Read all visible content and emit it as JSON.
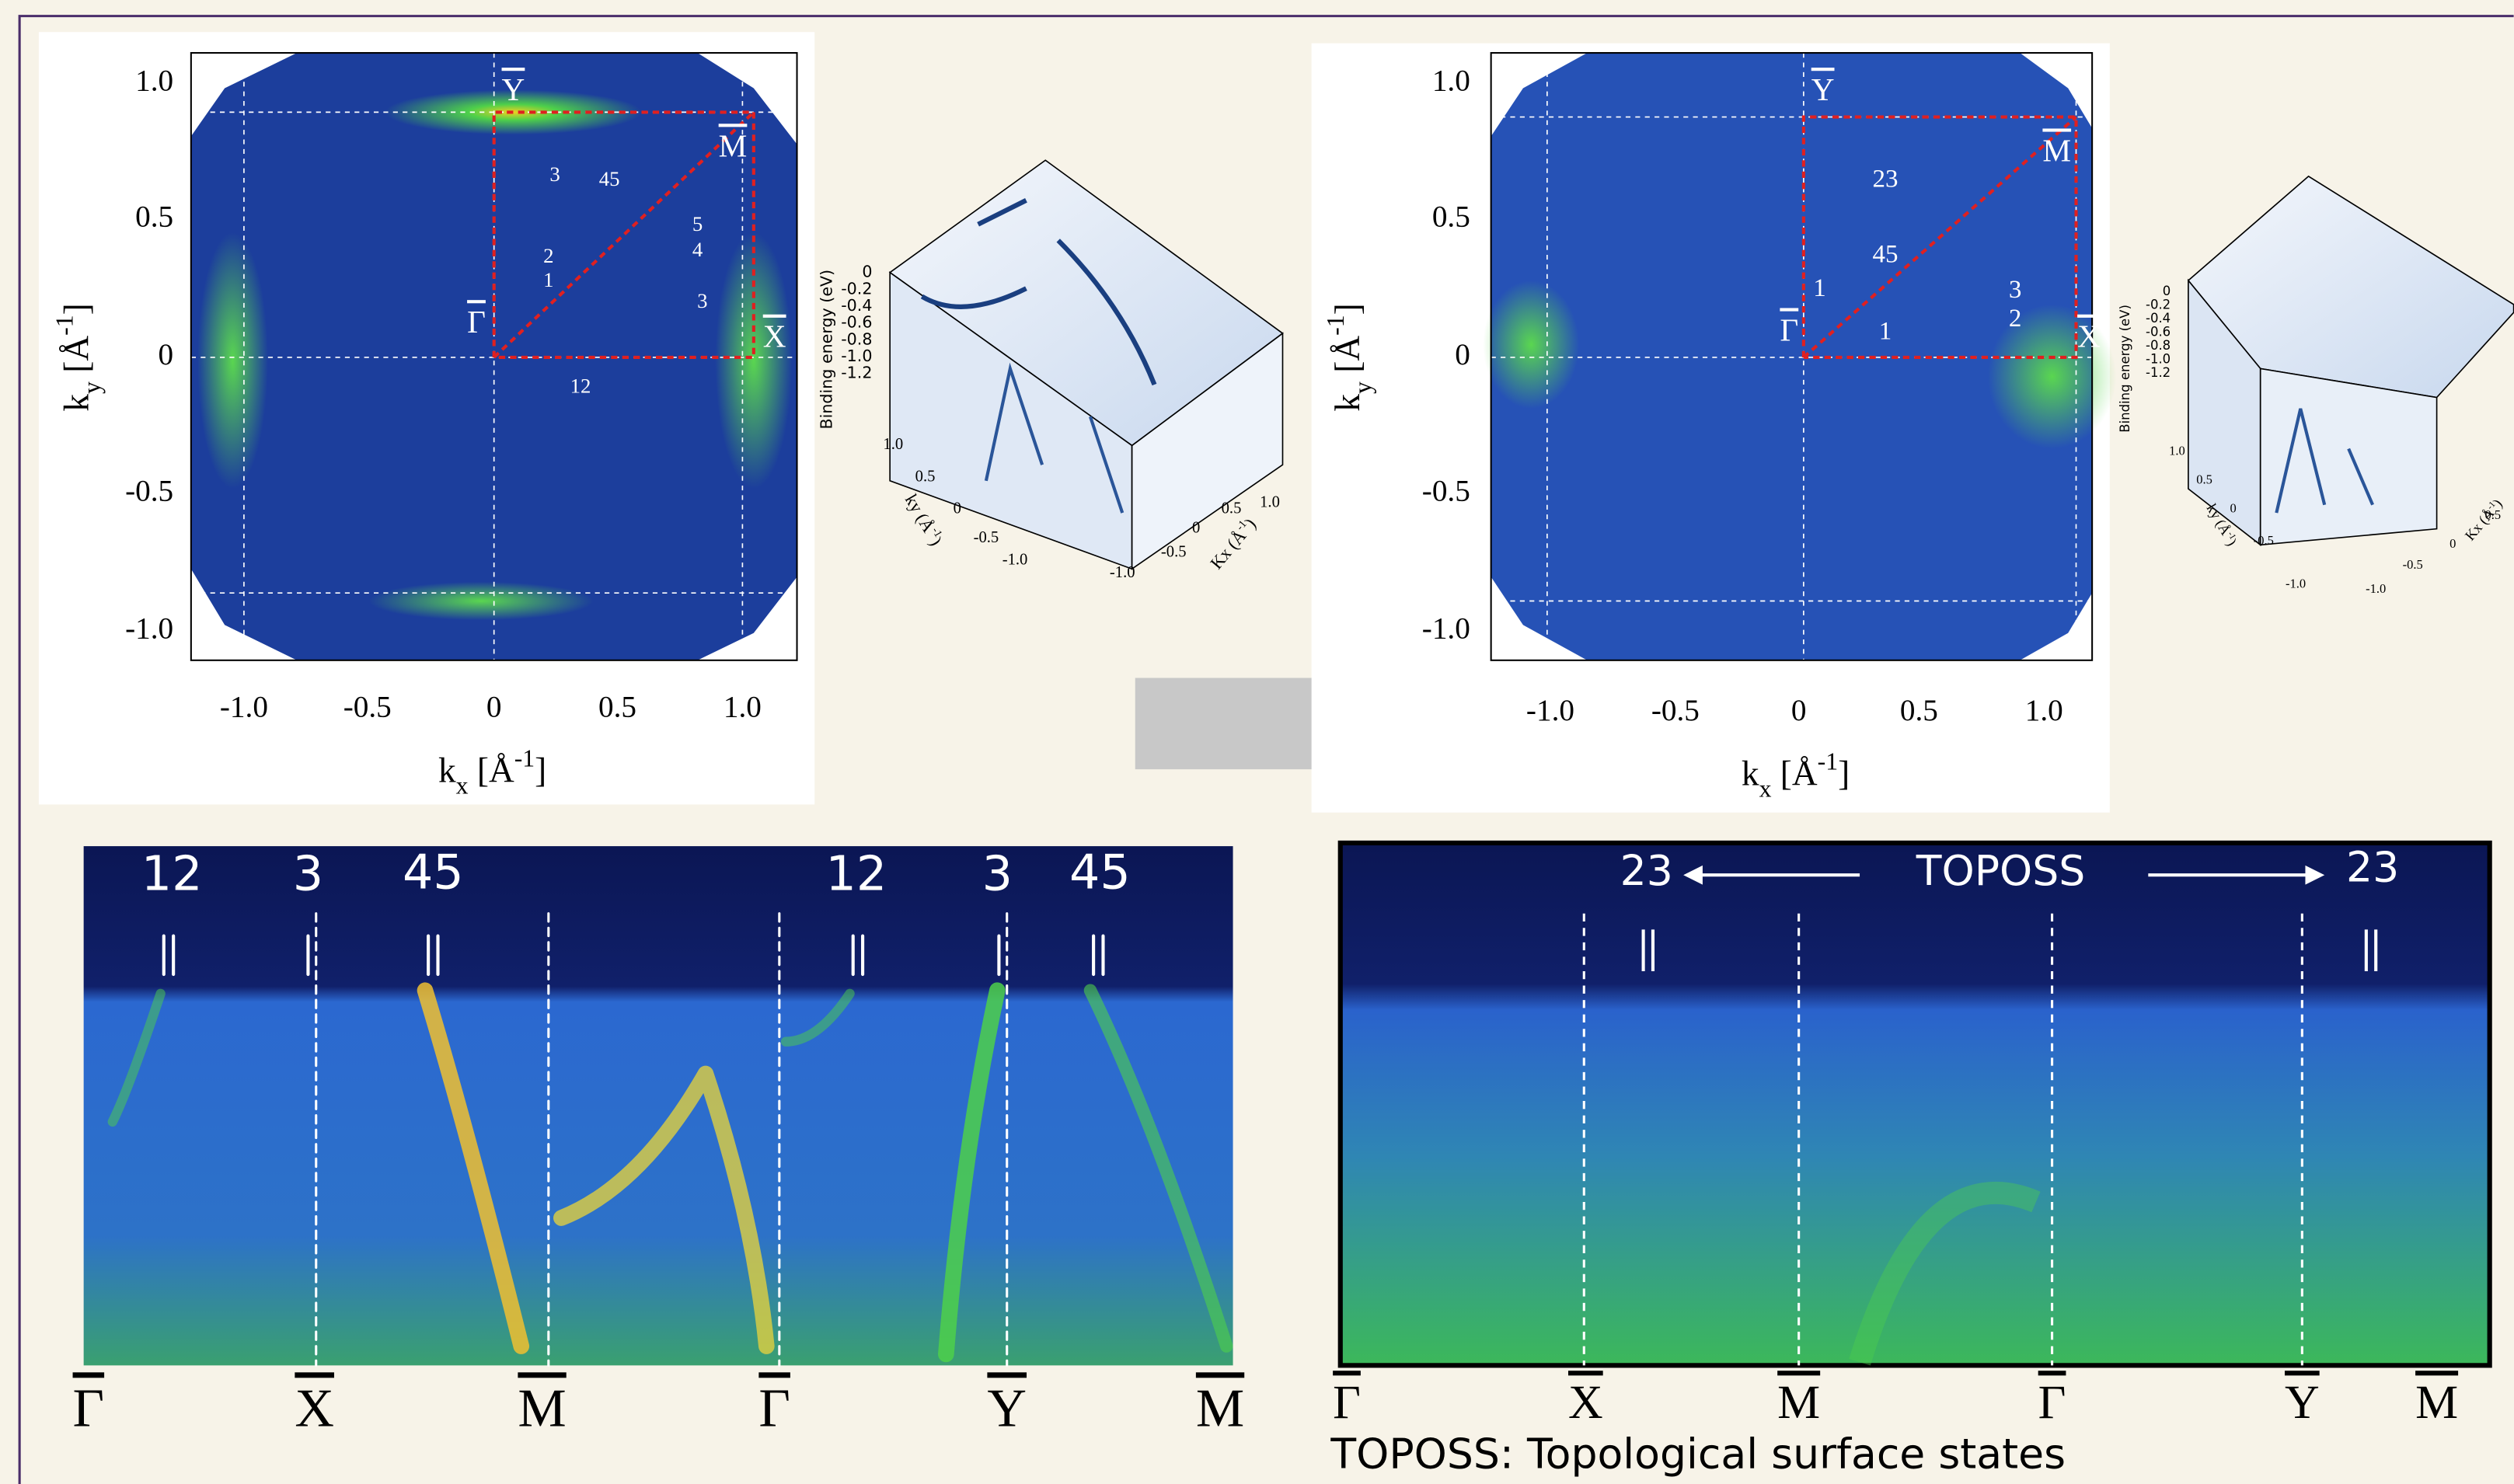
{
  "panel_a": {
    "y_ticks": [
      "1.0",
      "0.5",
      "0",
      "-0.5",
      "-1.0"
    ],
    "x_ticks": [
      "-1.0",
      "-0.5",
      "0",
      "0.5",
      "1.0"
    ],
    "x_label": {
      "base": "k",
      "sub": "x",
      "unit": " [Å",
      "sup": "-1",
      "close": "]"
    },
    "y_label": {
      "base": "k",
      "sub": "y",
      "unit": " [Å",
      "sup": "-1",
      "close": "]"
    },
    "points": [
      "Y",
      "M",
      "Γ",
      "X"
    ],
    "annotations": [
      "3",
      "45",
      "2",
      "1",
      "5",
      "4",
      "3",
      "12"
    ]
  },
  "inset_a": {
    "z_label": "Binding energy (eV)",
    "z_ticks": [
      "0",
      "-0.2",
      "-0.4",
      "-0.6",
      "-0.8",
      "-1.0",
      "-1.2"
    ],
    "ky_label": {
      "base": "ky (Å",
      "sup": "-1",
      "close": ")"
    },
    "ky_ticks": [
      "1.0",
      "0.5",
      "0",
      "-0.5",
      "-1.0"
    ],
    "kx_label": {
      "base": "Kx (Å",
      "sup": "-1",
      "close": ")"
    },
    "kx_ticks": [
      "-1.0",
      "-0.5",
      "0",
      "0.5",
      "1.0"
    ]
  },
  "panel_b": {
    "y_ticks": [
      "1.0",
      "0.5",
      "0",
      "-0.5",
      "-1.0"
    ],
    "x_ticks": [
      "-1.0",
      "-0.5",
      "0",
      "0.5",
      "1.0"
    ],
    "x_label": {
      "base": "k",
      "sub": "x",
      "unit": " [Å",
      "sup": "-1",
      "close": "]"
    },
    "y_label": {
      "base": "k",
      "sub": "y",
      "unit": " [Å",
      "sup": "-1",
      "close": "]"
    },
    "points": [
      "Y",
      "M",
      "Γ",
      "X"
    ],
    "annotations": [
      "23",
      "45",
      "1",
      "1",
      "3",
      "2"
    ]
  },
  "inset_b": {
    "z_label": "Binding energy (eV)",
    "z_ticks": [
      "0",
      "-0.2",
      "-0.4",
      "-0.6",
      "-0.8",
      "-1.0",
      "-1.2"
    ],
    "ky_label": {
      "base": "ky (Å",
      "sup": "-1",
      "close": ")"
    },
    "ky_ticks": [
      "1.0",
      "0.5",
      "0",
      "-0.5",
      "-1.0"
    ],
    "kx_label": {
      "base": "Kx (Å",
      "sup": "-1",
      "close": ")"
    },
    "kx_ticks": [
      "-1.0",
      "-0.5",
      "0",
      "0.5"
    ]
  },
  "strip_a": {
    "annotations": [
      "12",
      "3",
      "45",
      "12",
      "3",
      "45"
    ],
    "points": [
      "Γ",
      "X",
      "M",
      "Γ",
      "Y",
      "M"
    ]
  },
  "strip_b": {
    "annotations": [
      "23",
      "TOPOSS",
      "23"
    ],
    "points": [
      "Γ",
      "X",
      "M",
      "Γ",
      "Y",
      "M"
    ],
    "caption": "TOPOSS: Topological surface states"
  }
}
